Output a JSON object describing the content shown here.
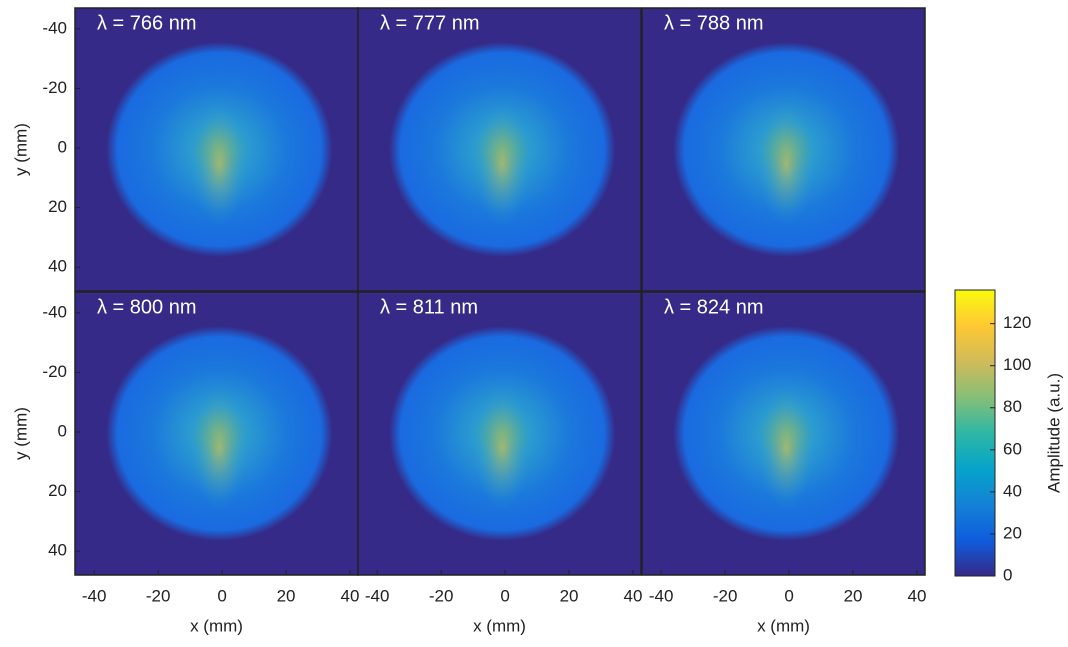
{
  "chart_data": [
    {
      "type": "heatmap",
      "title": "λ = 766 nm",
      "xlim": [
        -46,
        42.5
      ],
      "ylim": [
        -47,
        48
      ],
      "ylabel": "y (mm)",
      "yticks": [
        -40,
        -20,
        0,
        20,
        40
      ]
    },
    {
      "type": "heatmap",
      "title": "λ = 777 nm",
      "xlim": [
        -46,
        42.5
      ],
      "ylim": [
        -47,
        48
      ]
    },
    {
      "type": "heatmap",
      "title": "λ = 788 nm",
      "xlim": [
        -46,
        42.5
      ],
      "ylim": [
        -47,
        48
      ]
    },
    {
      "type": "heatmap",
      "title": "λ = 800 nm",
      "xlim": [
        -46,
        42.5
      ],
      "ylim": [
        -47,
        48
      ],
      "ylabel": "y (mm)",
      "yticks": [
        -40,
        -20,
        0,
        20,
        40
      ],
      "xlabel": "x (mm)",
      "xticks": [
        -40,
        -20,
        0,
        20,
        40
      ]
    },
    {
      "type": "heatmap",
      "title": "λ = 811 nm",
      "xlim": [
        -46,
        42.5
      ],
      "ylim": [
        -47,
        48
      ],
      "xlabel": "x (mm)",
      "xticks": [
        -40,
        -20,
        0,
        20,
        40
      ]
    },
    {
      "type": "heatmap",
      "title": "λ = 824 nm",
      "xlim": [
        -46,
        42.5
      ],
      "ylim": [
        -47,
        48
      ],
      "xlabel": "x (mm)",
      "xticks": [
        -40,
        -20,
        0,
        20,
        40
      ]
    },
    {
      "type": "colorbar",
      "label": "Amplitude (a.u.)",
      "clim": [
        0,
        136
      ],
      "ticks": [
        0,
        20,
        40,
        60,
        80,
        100,
        120
      ],
      "colors": [
        "#352a87",
        "#0f5cdd",
        "#1481d6",
        "#06a4ca",
        "#2eb7a4",
        "#87bf77",
        "#d1bb59",
        "#fec832",
        "#f9fb0e"
      ]
    }
  ]
}
